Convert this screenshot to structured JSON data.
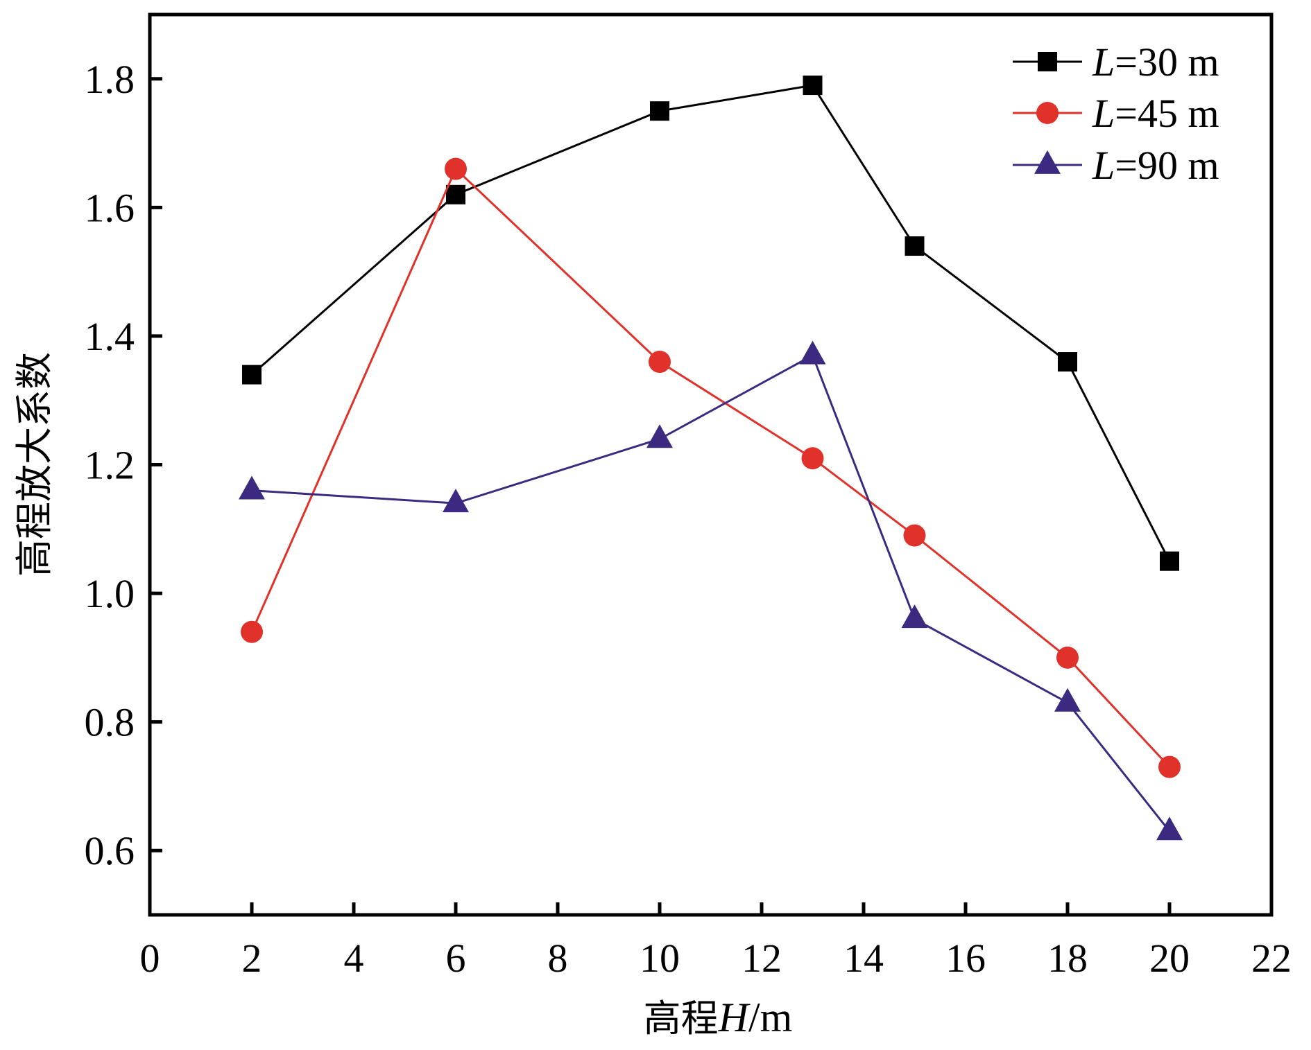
{
  "chart_data": {
    "type": "line",
    "title": "",
    "xlabel": "高程H/m",
    "xlabel_parts": {
      "prefix": "高程",
      "italic": "H",
      "suffix": "/m"
    },
    "ylabel": "高程放大系数",
    "xlim": [
      0,
      22
    ],
    "ylim": [
      0.5,
      1.9
    ],
    "xticks": [
      0,
      2,
      4,
      6,
      8,
      10,
      12,
      14,
      16,
      18,
      20,
      22
    ],
    "xtick_labels": [
      "0",
      "2",
      "4",
      "6",
      "8",
      "10",
      "12",
      "14",
      "16",
      "18",
      "20",
      "22"
    ],
    "yticks": [
      0.6,
      0.8,
      1.0,
      1.2,
      1.4,
      1.6,
      1.8
    ],
    "ytick_labels": [
      "0.6",
      "0.8",
      "1.0",
      "1.2",
      "1.4",
      "1.6",
      "1.8"
    ],
    "grid": false,
    "legend_position": "top-right",
    "x": [
      2,
      6,
      10,
      13,
      15,
      18,
      20
    ],
    "series": [
      {
        "name": "L=30 m",
        "label_italic": "L",
        "label_rest": "=30 m",
        "marker": "square",
        "color": "#000000",
        "values": [
          1.34,
          1.62,
          1.75,
          1.79,
          1.54,
          1.36,
          1.05
        ]
      },
      {
        "name": "L=45 m",
        "label_italic": "L",
        "label_rest": "=45 m",
        "marker": "circle",
        "color": "#e0312a",
        "values": [
          0.94,
          1.66,
          1.36,
          1.21,
          1.09,
          0.9,
          0.73
        ]
      },
      {
        "name": "L=90 m",
        "label_italic": "L",
        "label_rest": "=90 m",
        "marker": "triangle",
        "color": "#3b2a80",
        "values": [
          1.16,
          1.14,
          1.24,
          1.37,
          0.96,
          0.83,
          0.63
        ]
      }
    ]
  }
}
